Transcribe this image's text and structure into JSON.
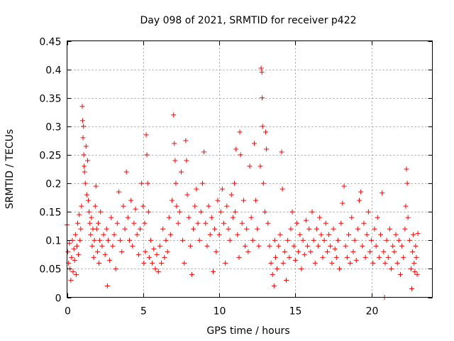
{
  "chart_data": {
    "type": "scatter",
    "title": "Day 098 of 2021, SRMTID for receiver p422",
    "xlabel": "GPS time / hours",
    "ylabel": "SRMTID / TECUs",
    "xlim": [
      0,
      24
    ],
    "ylim": [
      0,
      0.45
    ],
    "x_ticks": [
      0,
      5,
      10,
      15,
      20
    ],
    "x_tick_labels": [
      "0",
      "5",
      "10",
      "15",
      "20"
    ],
    "y_ticks": [
      0,
      0.05,
      0.1,
      0.15,
      0.2,
      0.25,
      0.3,
      0.35,
      0.4,
      0.45
    ],
    "y_tick_labels": [
      "0",
      "0.05",
      "0.1",
      "0.15",
      "0.2",
      "0.25",
      "0.3",
      "0.35",
      "0.4",
      "0.45"
    ],
    "grid": true,
    "marker": "plus",
    "color": "#ff0000",
    "series": [
      {
        "name": "SRMTID",
        "points": [
          [
            0.0,
            0.127
          ],
          [
            0.05,
            0.08
          ],
          [
            0.1,
            0.06
          ],
          [
            0.15,
            0.095
          ],
          [
            0.2,
            0.05
          ],
          [
            0.25,
            0.03
          ],
          [
            0.3,
            0.07
          ],
          [
            0.35,
            0.1
          ],
          [
            0.4,
            0.045
          ],
          [
            0.45,
            0.085
          ],
          [
            0.5,
            0.065
          ],
          [
            0.55,
            0.11
          ],
          [
            0.6,
            0.04
          ],
          [
            0.65,
            0.09
          ],
          [
            0.7,
            0.13
          ],
          [
            0.75,
            0.075
          ],
          [
            0.8,
            0.145
          ],
          [
            0.85,
            0.1
          ],
          [
            0.9,
            0.12
          ],
          [
            0.95,
            0.16
          ],
          [
            1.0,
            0.335
          ],
          [
            1.02,
            0.31
          ],
          [
            1.05,
            0.28
          ],
          [
            1.08,
            0.3
          ],
          [
            1.1,
            0.25
          ],
          [
            1.12,
            0.23
          ],
          [
            1.15,
            0.22
          ],
          [
            1.2,
            0.2
          ],
          [
            1.25,
            0.265
          ],
          [
            1.3,
            0.18
          ],
          [
            1.35,
            0.24
          ],
          [
            1.4,
            0.17
          ],
          [
            1.45,
            0.15
          ],
          [
            1.5,
            0.13
          ],
          [
            1.55,
            0.11
          ],
          [
            1.6,
            0.14
          ],
          [
            1.65,
            0.09
          ],
          [
            1.7,
            0.12
          ],
          [
            1.75,
            0.07
          ],
          [
            1.8,
            0.1
          ],
          [
            1.85,
            0.16
          ],
          [
            1.9,
            0.195
          ],
          [
            1.95,
            0.12
          ],
          [
            2.0,
            0.08
          ],
          [
            2.05,
            0.13
          ],
          [
            2.1,
            0.06
          ],
          [
            2.15,
            0.1
          ],
          [
            2.2,
            0.15
          ],
          [
            2.3,
            0.09
          ],
          [
            2.4,
            0.11
          ],
          [
            2.5,
            0.075
          ],
          [
            2.6,
            0.12
          ],
          [
            2.65,
            0.02
          ],
          [
            2.7,
            0.1
          ],
          [
            2.8,
            0.065
          ],
          [
            2.9,
            0.14
          ],
          [
            3.0,
            0.09
          ],
          [
            3.1,
            0.11
          ],
          [
            3.2,
            0.05
          ],
          [
            3.3,
            0.13
          ],
          [
            3.4,
            0.185
          ],
          [
            3.5,
            0.1
          ],
          [
            3.6,
            0.08
          ],
          [
            3.7,
            0.16
          ],
          [
            3.8,
            0.12
          ],
          [
            3.9,
            0.22
          ],
          [
            4.0,
            0.14
          ],
          [
            4.1,
            0.1
          ],
          [
            4.2,
            0.17
          ],
          [
            4.3,
            0.09
          ],
          [
            4.4,
            0.13
          ],
          [
            4.5,
            0.155
          ],
          [
            4.6,
            0.11
          ],
          [
            4.7,
            0.075
          ],
          [
            4.8,
            0.12
          ],
          [
            4.9,
            0.2
          ],
          [
            5.0,
            0.16
          ],
          [
            5.05,
            0.06
          ],
          [
            5.1,
            0.13
          ],
          [
            5.15,
            0.08
          ],
          [
            5.2,
            0.285
          ],
          [
            5.25,
            0.25
          ],
          [
            5.3,
            0.2
          ],
          [
            5.35,
            0.15
          ],
          [
            5.4,
            0.07
          ],
          [
            5.5,
            0.1
          ],
          [
            5.6,
            0.06
          ],
          [
            5.7,
            0.085
          ],
          [
            5.8,
            0.05
          ],
          [
            5.9,
            0.075
          ],
          [
            6.0,
            0.045
          ],
          [
            6.1,
            0.09
          ],
          [
            6.2,
            0.06
          ],
          [
            6.3,
            0.12
          ],
          [
            6.4,
            0.07
          ],
          [
            6.5,
            0.1
          ],
          [
            6.6,
            0.08
          ],
          [
            6.7,
            0.14
          ],
          [
            6.8,
            0.11
          ],
          [
            6.9,
            0.17
          ],
          [
            7.0,
            0.32
          ],
          [
            7.05,
            0.27
          ],
          [
            7.1,
            0.24
          ],
          [
            7.15,
            0.2
          ],
          [
            7.2,
            0.16
          ],
          [
            7.3,
            0.13
          ],
          [
            7.4,
            0.15
          ],
          [
            7.5,
            0.22
          ],
          [
            7.6,
            0.1
          ],
          [
            7.7,
            0.06
          ],
          [
            7.8,
            0.275
          ],
          [
            7.85,
            0.24
          ],
          [
            7.9,
            0.18
          ],
          [
            8.0,
            0.14
          ],
          [
            8.1,
            0.09
          ],
          [
            8.2,
            0.04
          ],
          [
            8.3,
            0.12
          ],
          [
            8.4,
            0.16
          ],
          [
            8.5,
            0.19
          ],
          [
            8.6,
            0.13
          ],
          [
            8.7,
            0.1
          ],
          [
            8.8,
            0.15
          ],
          [
            8.9,
            0.2
          ],
          [
            9.0,
            0.255
          ],
          [
            9.1,
            0.13
          ],
          [
            9.2,
            0.09
          ],
          [
            9.3,
            0.16
          ],
          [
            9.4,
            0.11
          ],
          [
            9.5,
            0.14
          ],
          [
            9.6,
            0.045
          ],
          [
            9.7,
            0.12
          ],
          [
            9.8,
            0.08
          ],
          [
            9.9,
            0.17
          ],
          [
            10.0,
            0.11
          ],
          [
            10.1,
            0.15
          ],
          [
            10.2,
            0.19
          ],
          [
            10.3,
            0.13
          ],
          [
            10.4,
            0.06
          ],
          [
            10.5,
            0.16
          ],
          [
            10.6,
            0.12
          ],
          [
            10.7,
            0.1
          ],
          [
            10.8,
            0.18
          ],
          [
            10.9,
            0.14
          ],
          [
            11.0,
            0.2
          ],
          [
            11.05,
            0.15
          ],
          [
            11.1,
            0.26
          ],
          [
            11.2,
            0.11
          ],
          [
            11.3,
            0.07
          ],
          [
            11.35,
            0.29
          ],
          [
            11.4,
            0.25
          ],
          [
            11.5,
            0.13
          ],
          [
            11.6,
            0.17
          ],
          [
            11.7,
            0.09
          ],
          [
            11.8,
            0.12
          ],
          [
            11.9,
            0.08
          ],
          [
            12.0,
            0.23
          ],
          [
            12.1,
            0.14
          ],
          [
            12.2,
            0.1
          ],
          [
            12.3,
            0.27
          ],
          [
            12.4,
            0.17
          ],
          [
            12.5,
            0.12
          ],
          [
            12.6,
            0.09
          ],
          [
            12.7,
            0.23
          ],
          [
            12.75,
            0.402
          ],
          [
            12.8,
            0.395
          ],
          [
            12.82,
            0.35
          ],
          [
            12.85,
            0.3
          ],
          [
            12.9,
            0.2
          ],
          [
            13.0,
            0.15
          ],
          [
            13.05,
            0.29
          ],
          [
            13.1,
            0.26
          ],
          [
            13.2,
            0.13
          ],
          [
            13.3,
            0.09
          ],
          [
            13.4,
            0.06
          ],
          [
            13.5,
            0.04
          ],
          [
            13.6,
            0.02
          ],
          [
            13.65,
            0.1
          ],
          [
            13.7,
            0.07
          ],
          [
            13.8,
            0.05
          ],
          [
            13.9,
            0.09
          ],
          [
            14.0,
            0.11
          ],
          [
            14.1,
            0.255
          ],
          [
            14.15,
            0.19
          ],
          [
            14.2,
            0.06
          ],
          [
            14.3,
            0.08
          ],
          [
            14.4,
            0.03
          ],
          [
            14.5,
            0.1
          ],
          [
            14.6,
            0.07
          ],
          [
            14.7,
            0.12
          ],
          [
            14.8,
            0.15
          ],
          [
            14.9,
            0.09
          ],
          [
            15.0,
            0.065
          ],
          [
            15.1,
            0.13
          ],
          [
            15.2,
            0.08
          ],
          [
            15.3,
            0.11
          ],
          [
            15.4,
            0.05
          ],
          [
            15.5,
            0.1
          ],
          [
            15.6,
            0.075
          ],
          [
            15.7,
            0.135
          ],
          [
            15.8,
            0.09
          ],
          [
            15.9,
            0.12
          ],
          [
            16.0,
            0.08
          ],
          [
            16.1,
            0.15
          ],
          [
            16.2,
            0.1
          ],
          [
            16.3,
            0.06
          ],
          [
            16.4,
            0.12
          ],
          [
            16.5,
            0.09
          ],
          [
            16.6,
            0.14
          ],
          [
            16.7,
            0.11
          ],
          [
            16.8,
            0.07
          ],
          [
            16.9,
            0.1
          ],
          [
            17.0,
            0.13
          ],
          [
            17.1,
            0.08
          ],
          [
            17.2,
            0.11
          ],
          [
            17.3,
            0.09
          ],
          [
            17.4,
            0.06
          ],
          [
            17.5,
            0.12
          ],
          [
            17.6,
            0.085
          ],
          [
            17.7,
            0.07
          ],
          [
            17.8,
            0.1
          ],
          [
            17.9,
            0.05
          ],
          [
            18.0,
            0.13
          ],
          [
            18.1,
            0.165
          ],
          [
            18.2,
            0.195
          ],
          [
            18.3,
            0.09
          ],
          [
            18.4,
            0.07
          ],
          [
            18.5,
            0.11
          ],
          [
            18.6,
            0.06
          ],
          [
            18.7,
            0.14
          ],
          [
            18.8,
            0.08
          ],
          [
            18.9,
            0.1
          ],
          [
            19.0,
            0.065
          ],
          [
            19.1,
            0.12
          ],
          [
            19.2,
            0.17
          ],
          [
            19.3,
            0.185
          ],
          [
            19.4,
            0.09
          ],
          [
            19.5,
            0.13
          ],
          [
            19.6,
            0.07
          ],
          [
            19.7,
            0.11
          ],
          [
            19.8,
            0.15
          ],
          [
            19.9,
            0.08
          ],
          [
            20.0,
            0.1
          ],
          [
            20.1,
            0.06
          ],
          [
            20.2,
            0.12
          ],
          [
            20.3,
            0.09
          ],
          [
            20.4,
            0.14
          ],
          [
            20.5,
            0.07
          ],
          [
            20.6,
            0.11
          ],
          [
            20.7,
            0.183
          ],
          [
            20.8,
            0.08
          ],
          [
            20.85,
            0.0
          ],
          [
            20.9,
            0.06
          ],
          [
            21.0,
            0.1
          ],
          [
            21.1,
            0.07
          ],
          [
            21.2,
            0.12
          ],
          [
            21.3,
            0.05
          ],
          [
            21.4,
            0.09
          ],
          [
            21.5,
            0.08
          ],
          [
            21.6,
            0.11
          ],
          [
            21.7,
            0.06
          ],
          [
            21.8,
            0.1
          ],
          [
            21.9,
            0.04
          ],
          [
            22.0,
            0.09
          ],
          [
            22.1,
            0.07
          ],
          [
            22.2,
            0.12
          ],
          [
            22.25,
            0.16
          ],
          [
            22.3,
            0.225
          ],
          [
            22.35,
            0.2
          ],
          [
            22.4,
            0.14
          ],
          [
            22.5,
            0.1
          ],
          [
            22.6,
            0.05
          ],
          [
            22.65,
            0.015
          ],
          [
            22.7,
            0.08
          ],
          [
            22.75,
            0.11
          ],
          [
            22.8,
            0.06
          ],
          [
            22.85,
            0.045
          ],
          [
            22.9,
            0.09
          ],
          [
            22.95,
            0.07
          ],
          [
            23.0,
            0.04
          ],
          [
            23.05,
            0.112
          ]
        ]
      }
    ]
  }
}
